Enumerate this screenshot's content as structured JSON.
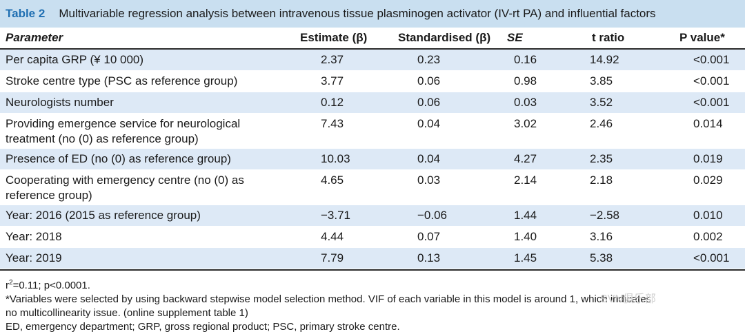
{
  "title": {
    "label": "Table 2",
    "text": "Multivariable regression analysis between intravenous tissue plasminogen activator (IV-rt PA) and influential factors"
  },
  "headers": [
    "Parameter",
    "Estimate (β)",
    "Standardised (β)",
    "SE",
    "t ratio",
    "P value*"
  ],
  "rows": [
    {
      "param": "Per capita GRP (¥ 10 000)",
      "estimate": "2.37",
      "standardised": "0.23",
      "se": "0.16",
      "t": "14.92",
      "p": "<0.001"
    },
    {
      "param": "Stroke centre type (PSC as reference group)",
      "estimate": "3.77",
      "standardised": "0.06",
      "se": "0.98",
      "t": "3.85",
      "p": "<0.001"
    },
    {
      "param": "Neurologists number",
      "estimate": "0.12",
      "standardised": "0.06",
      "se": "0.03",
      "t": "3.52",
      "p": "<0.001"
    },
    {
      "param_l1": "Providing emergence service for neurological",
      "param_l2": "treatment (no (0) as reference group)",
      "estimate": "7.43",
      "standardised": "0.04",
      "se": "3.02",
      "t": "2.46",
      "p": "0.014"
    },
    {
      "param": "Presence of ED (no (0) as reference group)",
      "estimate": "10.03",
      "standardised": "0.04",
      "se": "4.27",
      "t": "2.35",
      "p": "0.019"
    },
    {
      "param_l1": "Cooperating with emergency centre (no (0) as",
      "param_l2": "reference group)",
      "estimate": "4.65",
      "standardised": "0.03",
      "se": "2.14",
      "t": "2.18",
      "p": "0.029"
    },
    {
      "param": "Year: 2016 (2015 as reference group)",
      "estimate": "−3.71",
      "standardised": "−0.06",
      "se": "1.44",
      "t": "−2.58",
      "p": "0.010"
    },
    {
      "param": "Year: 2018",
      "estimate": "4.44",
      "standardised": "0.07",
      "se": "1.40",
      "t": "3.16",
      "p": "0.002"
    },
    {
      "param": "Year: 2019",
      "estimate": "7.79",
      "standardised": "0.13",
      "se": "1.45",
      "t": "5.38",
      "p": "<0.001"
    }
  ],
  "footnotes": {
    "r2_prefix": "r",
    "r2_sup": "2",
    "r2_rest": "=0.11; p<0.0001.",
    "note1_l1": "*Variables were selected by using backward stepwise model selection method. VIF of each variable in this model is around 1, which indicates",
    "note1_l2": "no multicollinearity issue. (online supplement table 1)",
    "note2": "ED, emergency department; GRP, gross regional product; PSC, primary stroke centre."
  },
  "watermark": "SVN俱乐部"
}
